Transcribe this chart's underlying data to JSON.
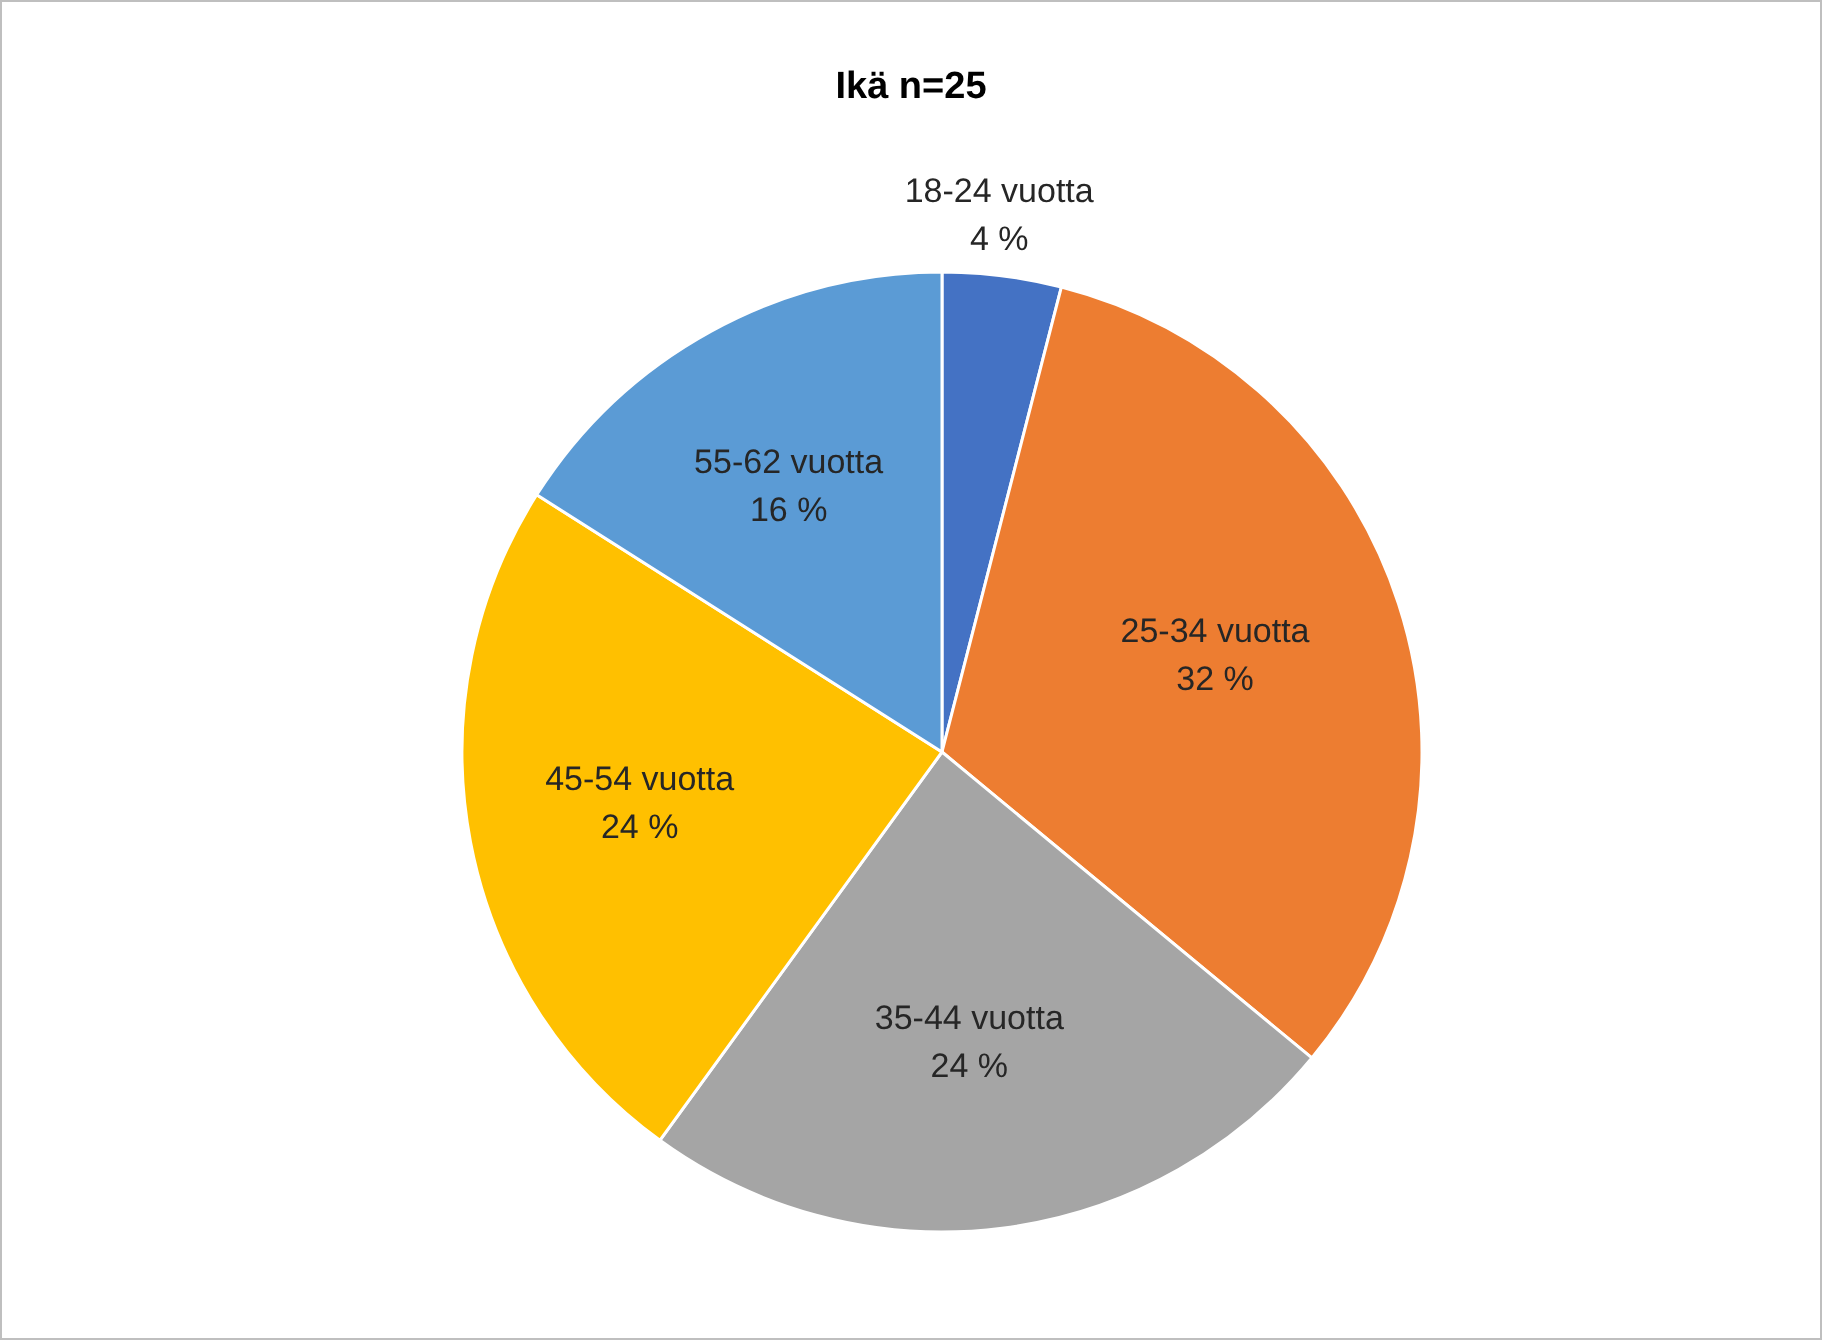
{
  "chart_data": {
    "type": "pie",
    "title": "Ikä n=25",
    "categories": [
      "18-24 vuotta",
      "25-34 vuotta",
      "35-44 vuotta",
      "45-54 vuotta",
      "55-62 vuotta"
    ],
    "values": [
      4,
      32,
      24,
      24,
      16
    ],
    "colors": [
      "#4472c4",
      "#ed7d31",
      "#a5a5a5",
      "#ffc000",
      "#5b9bd5"
    ],
    "value_labels": [
      "4 %",
      "32 %",
      "24 %",
      "24 %",
      "16 %"
    ],
    "legend": false
  }
}
